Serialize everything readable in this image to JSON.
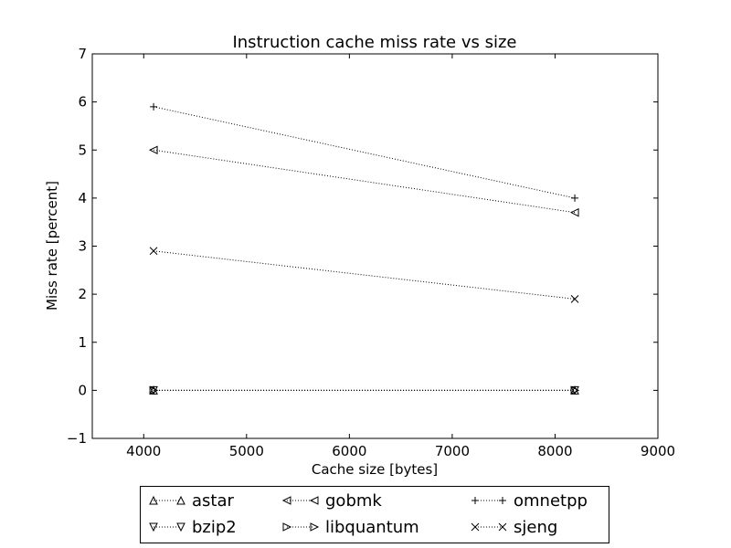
{
  "chart_data": {
    "type": "line",
    "title": "Instruction cache miss rate vs size",
    "xlabel": "Cache size [bytes]",
    "ylabel": "Miss rate [percent]",
    "xlim": [
      3500,
      9000
    ],
    "ylim": [
      -1,
      7
    ],
    "xticks": [
      4000,
      5000,
      6000,
      7000,
      8000,
      9000
    ],
    "yticks": [
      -1,
      0,
      1,
      2,
      3,
      4,
      5,
      6,
      7
    ],
    "x": [
      4096,
      8192
    ],
    "line_style": "dotted",
    "grid": false,
    "legend_position": "below",
    "series": [
      {
        "name": "astar",
        "marker": "triangle-up",
        "values": [
          0,
          0
        ]
      },
      {
        "name": "bzip2",
        "marker": "triangle-down",
        "values": [
          0,
          0
        ]
      },
      {
        "name": "gobmk",
        "marker": "triangle-left",
        "values": [
          5.0,
          3.7
        ]
      },
      {
        "name": "libquantum",
        "marker": "triangle-right",
        "values": [
          0,
          0
        ]
      },
      {
        "name": "omnetpp",
        "marker": "plus",
        "values": [
          5.9,
          4.0
        ]
      },
      {
        "name": "sjeng",
        "marker": "x",
        "values": [
          2.9,
          1.9
        ]
      }
    ]
  }
}
